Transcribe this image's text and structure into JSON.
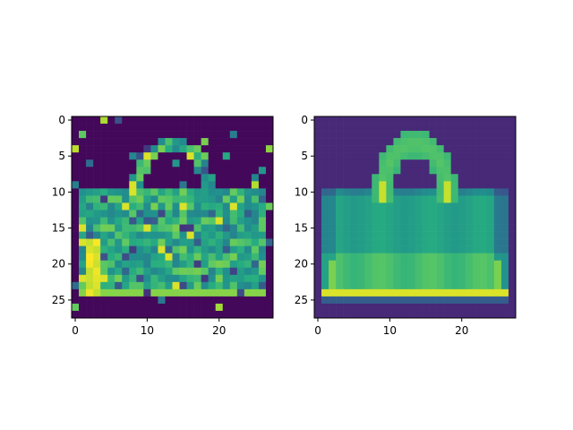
{
  "figure": {
    "description_free": true
  },
  "colormap": "viridis",
  "chart_data": [
    {
      "type": "heatmap",
      "title": "",
      "xlabel": "",
      "ylabel": "",
      "shape": [
        28,
        28
      ],
      "value_range": [
        0,
        1
      ],
      "xticks": [
        0,
        10,
        20
      ],
      "yticks": [
        0,
        5,
        10,
        15,
        20,
        25
      ],
      "xtick_labels": [
        "0",
        "10",
        "20"
      ],
      "ytick_labels": [
        "0",
        "5",
        "10",
        "15",
        "20",
        "25"
      ],
      "content": "noisy handbag",
      "seed": 7
    },
    {
      "type": "heatmap",
      "title": "",
      "xlabel": "",
      "ylabel": "",
      "shape": [
        28,
        28
      ],
      "value_range": [
        0,
        1
      ],
      "xticks": [
        0,
        10,
        20
      ],
      "yticks": [
        0,
        5,
        10,
        15,
        20,
        25
      ],
      "xtick_labels": [
        "0",
        "10",
        "20"
      ],
      "ytick_labels": [
        "0",
        "5",
        "10",
        "15",
        "20",
        "25"
      ],
      "content": "reconstructed handbag"
    }
  ]
}
